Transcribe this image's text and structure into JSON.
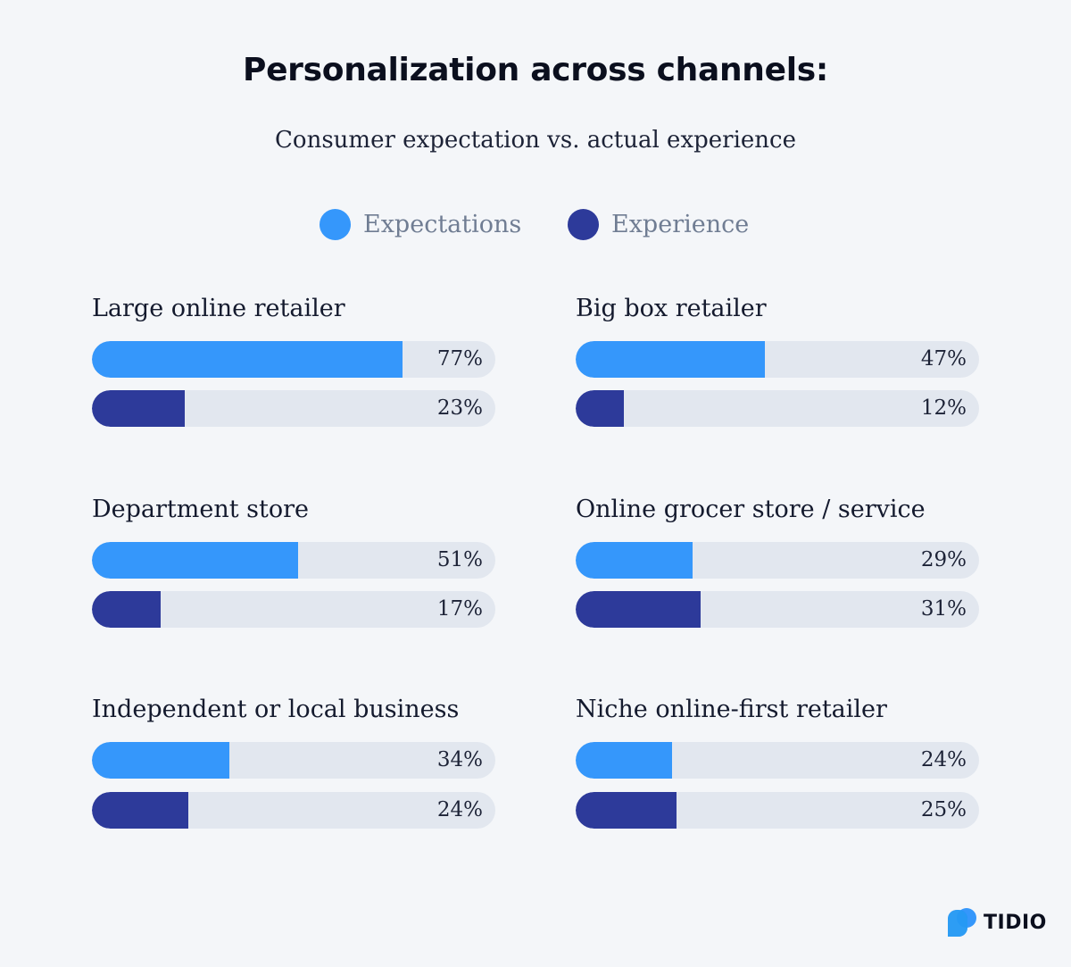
{
  "header": {
    "title": "Personalization across channels:",
    "subtitle": "Consumer expectation vs. actual experience"
  },
  "colors": {
    "expectations": "#3597fb",
    "experience": "#2d3a9a",
    "track": "#e2e7ef"
  },
  "brand": {
    "name": "TIDIO",
    "logo_icon": "tidio-logo-icon"
  },
  "chart_data": {
    "type": "bar",
    "orientation": "horizontal",
    "value_unit": "%",
    "xlim": [
      0,
      100
    ],
    "legend": {
      "placement": "top-center"
    },
    "series": [
      {
        "name": "Expectations",
        "color": "#3597fb"
      },
      {
        "name": "Experience",
        "color": "#2d3a9a"
      }
    ],
    "panels": [
      {
        "label": "Large online retailer",
        "expectations": 77,
        "experience": 23,
        "expectations_label": "77%",
        "experience_label": "23%"
      },
      {
        "label": "Big box retailer",
        "expectations": 47,
        "experience": 12,
        "expectations_label": "47%",
        "experience_label": "12%"
      },
      {
        "label": "Department store",
        "expectations": 51,
        "experience": 17,
        "expectations_label": "51%",
        "experience_label": "17%"
      },
      {
        "label": "Online grocer store / service",
        "expectations": 29,
        "experience": 31,
        "expectations_label": "29%",
        "experience_label": "31%"
      },
      {
        "label": "Independent or local business",
        "expectations": 34,
        "experience": 24,
        "expectations_label": "34%",
        "experience_label": "24%"
      },
      {
        "label": "Niche online-first retailer",
        "expectations": 24,
        "experience": 25,
        "expectations_label": "24%",
        "experience_label": "25%"
      }
    ]
  }
}
